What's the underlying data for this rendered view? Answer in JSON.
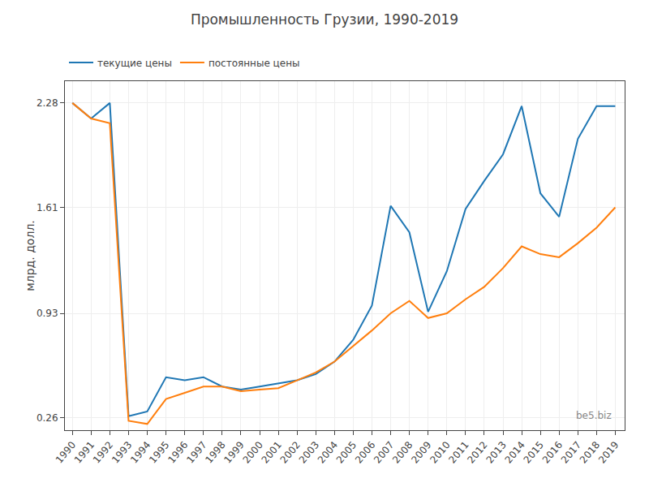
{
  "chart_data": {
    "type": "line",
    "title": "Промышленность Грузии, 1990-2019",
    "ylabel": "млрд. долл.",
    "x": [
      1990,
      1991,
      1992,
      1993,
      1994,
      1995,
      1996,
      1997,
      1998,
      1999,
      2000,
      2001,
      2002,
      2003,
      2004,
      2005,
      2006,
      2007,
      2008,
      2009,
      2010,
      2011,
      2012,
      2013,
      2014,
      2015,
      2016,
      2017,
      2018,
      2019
    ],
    "series": [
      {
        "name": "текущие цены",
        "values": [
          2.28,
          2.18,
          2.28,
          0.27,
          0.3,
          0.52,
          0.5,
          0.52,
          0.46,
          0.44,
          0.46,
          0.48,
          0.5,
          0.54,
          0.62,
          0.76,
          0.98,
          1.62,
          1.45,
          0.94,
          1.2,
          1.6,
          1.78,
          1.95,
          2.26,
          1.7,
          1.55,
          2.05,
          2.26,
          2.26
        ]
      },
      {
        "name": "постоянные цены",
        "values": [
          2.28,
          2.18,
          2.15,
          0.24,
          0.22,
          0.38,
          0.42,
          0.46,
          0.46,
          0.43,
          0.44,
          0.45,
          0.5,
          0.55,
          0.62,
          0.72,
          0.82,
          0.93,
          1.01,
          0.9,
          0.93,
          1.02,
          1.1,
          1.22,
          1.36,
          1.31,
          1.29,
          1.38,
          1.48,
          1.61
        ]
      }
    ],
    "xlim": [
      1989.6,
      2019.5
    ],
    "xticks": [
      1990,
      1991,
      1992,
      1993,
      1994,
      1995,
      1996,
      1997,
      1998,
      1999,
      2000,
      2001,
      2002,
      2003,
      2004,
      2005,
      2006,
      2007,
      2008,
      2009,
      2010,
      2011,
      2012,
      2013,
      2014,
      2015,
      2016,
      2017,
      2018,
      2019
    ],
    "ylim": [
      0.18,
      2.42
    ],
    "yticks": [
      0.26,
      0.93,
      1.61,
      2.28
    ],
    "grid": true,
    "legend": "upper left",
    "annotations": [
      "be5.biz"
    ]
  }
}
